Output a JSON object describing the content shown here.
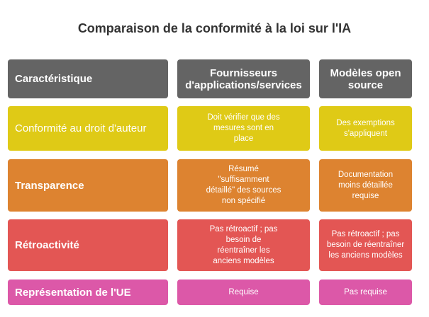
{
  "title": "Comparaison de la conformité à la loi sur l'IA",
  "headers": [
    "Caractéristique",
    "Fournisseurs d'applications/services",
    "Modèles open source"
  ],
  "colors": {
    "header": "#646464",
    "row_colors": [
      "#dfca16",
      "#dd8330",
      "#e35654",
      "#dc58a8"
    ]
  },
  "rows": [
    {
      "label": "Conformité au droit d'auteur",
      "providers": "Doit vérifier que des mesures sont en place",
      "open_source": "Des exemptions s'appliquent"
    },
    {
      "label": "Transparence",
      "providers": "Résumé \"suffisamment détaillé\" des sources non spécifié",
      "open_source": "Documentation moins détaillée requise"
    },
    {
      "label": "Rétroactivité",
      "providers": "Pas rétroactif ; pas besoin de réentraîner les anciens modèles",
      "open_source": "Pas rétroactif ; pas besoin de réentraîner les anciens modèles"
    },
    {
      "label": "Représentation de l'UE",
      "providers": "Requise",
      "open_source": "Pas requise"
    }
  ]
}
